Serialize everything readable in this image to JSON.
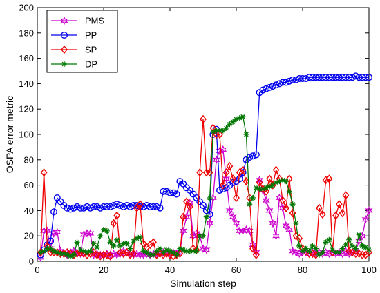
{
  "chart_data": {
    "type": "line",
    "title": "",
    "xlabel": "Simulation step",
    "ylabel": "OSPA error metric",
    "xlim": [
      0,
      100
    ],
    "ylim": [
      0,
      200
    ],
    "xticks": [
      0,
      20,
      40,
      60,
      80,
      100
    ],
    "yticks": [
      0,
      20,
      40,
      60,
      80,
      100,
      120,
      140,
      160,
      180,
      200
    ],
    "grid": false,
    "legend_position": "top-left",
    "x": [
      1,
      2,
      3,
      4,
      5,
      6,
      7,
      8,
      9,
      10,
      11,
      12,
      13,
      14,
      15,
      16,
      17,
      18,
      19,
      20,
      21,
      22,
      23,
      24,
      25,
      26,
      27,
      28,
      29,
      30,
      31,
      32,
      33,
      34,
      35,
      36,
      37,
      38,
      39,
      40,
      41,
      42,
      43,
      44,
      45,
      46,
      47,
      48,
      49,
      50,
      51,
      52,
      53,
      54,
      55,
      56,
      57,
      58,
      59,
      60,
      61,
      62,
      63,
      64,
      65,
      66,
      67,
      68,
      69,
      70,
      71,
      72,
      73,
      74,
      75,
      76,
      77,
      78,
      79,
      80,
      81,
      82,
      83,
      84,
      85,
      86,
      87,
      88,
      89,
      90,
      91,
      92,
      93,
      94,
      95,
      96,
      97,
      98,
      99,
      100
    ],
    "series": [
      {
        "name": "PMS",
        "color": "#cc00cc",
        "marker": "star",
        "values": [
          3,
          24,
          24,
          10,
          22,
          23,
          8,
          6,
          5,
          7,
          8,
          6,
          6,
          21,
          22,
          22,
          5,
          6,
          5,
          5,
          6,
          5,
          6,
          5,
          6,
          8,
          7,
          6,
          5,
          6,
          5,
          5,
          6,
          5,
          6,
          5,
          6,
          7,
          6,
          6,
          7,
          6,
          7,
          24,
          35,
          46,
          20,
          22,
          20,
          10,
          9,
          30,
          50,
          80,
          87,
          88,
          65,
          40,
          35,
          30,
          24,
          24,
          25,
          24,
          13,
          7,
          64,
          56,
          48,
          40,
          30,
          20,
          50,
          42,
          28,
          25,
          8,
          7,
          6,
          7,
          7,
          6,
          7,
          6,
          7,
          6,
          7,
          6,
          7,
          6,
          7,
          6,
          8,
          6,
          7,
          8,
          16,
          20,
          33,
          40
        ]
      },
      {
        "name": "PP",
        "color": "#0000ee",
        "marker": "circle",
        "values": [
          5,
          9,
          13,
          16,
          39,
          50,
          47,
          44,
          42,
          41,
          42,
          43,
          42,
          42,
          43,
          42,
          43,
          43,
          42,
          43,
          43,
          43,
          44,
          45,
          44,
          43,
          44,
          43,
          44,
          44,
          43,
          43,
          44,
          43,
          43,
          43,
          42,
          55,
          55,
          54,
          54,
          53,
          63,
          61,
          58,
          56,
          53,
          50,
          47,
          44,
          40,
          37,
          100,
          104,
          56,
          57,
          58,
          60,
          62,
          63,
          65,
          70,
          80,
          82,
          83,
          84,
          133,
          135,
          136,
          137,
          138,
          139,
          140,
          141,
          141,
          142,
          143,
          143,
          144,
          144,
          144,
          145,
          145,
          145,
          145,
          145,
          145,
          145,
          145,
          145,
          145,
          145,
          145,
          145,
          145,
          146,
          145,
          145,
          145,
          145
        ]
      },
      {
        "name": "SP",
        "color": "#ee0000",
        "marker": "diamond",
        "values": [
          7,
          70,
          12,
          7,
          7,
          7,
          6,
          6,
          7,
          6,
          5,
          6,
          7,
          6,
          5,
          6,
          7,
          5,
          4,
          5,
          5,
          4,
          30,
          36,
          7,
          6,
          7,
          5,
          6,
          42,
          45,
          14,
          11,
          13,
          15,
          5,
          6,
          5,
          6,
          5,
          4,
          5,
          6,
          35,
          47,
          43,
          10,
          9,
          70,
          112,
          70,
          70,
          105,
          100,
          100,
          60,
          70,
          75,
          65,
          50,
          70,
          72,
          63,
          50,
          10,
          5,
          62,
          57,
          55,
          65,
          60,
          72,
          65,
          48,
          42,
          65,
          38,
          20,
          18,
          10,
          8,
          6,
          6,
          5,
          42,
          37,
          64,
          65,
          7,
          36,
          45,
          38,
          52,
          8,
          7,
          6,
          6,
          5,
          5,
          7
        ]
      },
      {
        "name": "DP",
        "color": "#007700",
        "marker": "asterisk",
        "values": [
          7,
          8,
          10,
          10,
          8,
          7,
          6,
          6,
          5,
          4,
          5,
          15,
          9,
          8,
          7,
          8,
          14,
          11,
          20,
          25,
          24,
          15,
          12,
          17,
          12,
          14,
          14,
          10,
          16,
          18,
          19,
          8,
          7,
          5,
          5,
          8,
          10,
          7,
          9,
          8,
          7,
          5,
          10,
          9,
          8,
          8,
          8,
          8,
          20,
          20,
          35,
          50,
          102,
          103,
          103,
          103,
          105,
          108,
          110,
          112,
          113,
          114,
          100,
          45,
          50,
          58,
          57,
          57,
          58,
          59,
          60,
          62,
          63,
          64,
          63,
          55,
          45,
          30,
          12,
          8,
          10,
          8,
          12,
          10,
          5,
          7,
          15,
          17,
          9,
          7,
          7,
          10,
          13,
          17,
          12,
          10,
          21,
          12,
          11,
          9
        ]
      }
    ]
  }
}
